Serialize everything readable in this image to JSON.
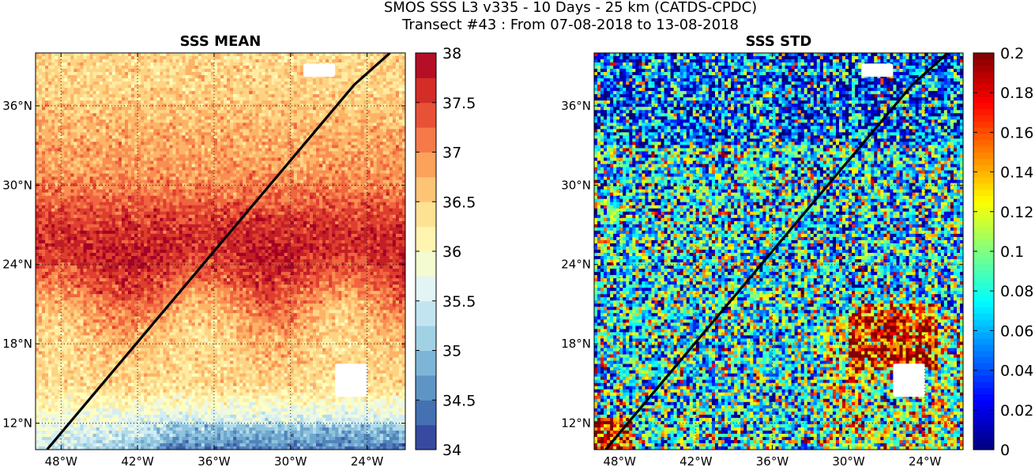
{
  "figure": {
    "title_line1": "SMOS SSS L3 v335 - 10 Days - 25 km (CATDS-CPDC)",
    "title_line2": "Transect #43 : From 07-08-2018 to 13-08-2018"
  },
  "chart_data": [
    {
      "type": "heatmap",
      "title": "SSS MEAN",
      "colormap": "RdYlBu_r (discrete, 0.25 steps)",
      "xlabel": "",
      "ylabel": "",
      "x_ticks": [
        "48°W",
        "42°W",
        "36°W",
        "30°W",
        "24°W"
      ],
      "x_tick_values": [
        -48,
        -42,
        -36,
        -30,
        -24
      ],
      "y_ticks": [
        "12°N",
        "18°N",
        "24°N",
        "30°N",
        "36°N"
      ],
      "y_tick_values": [
        12,
        18,
        24,
        30,
        36
      ],
      "xlim": [
        -50,
        -21
      ],
      "ylim": [
        10,
        40
      ],
      "grid": true,
      "colorbar": {
        "range": [
          34,
          38
        ],
        "step": 0.25,
        "tick_labels": [
          "34",
          "34.5",
          "35",
          "35.5",
          "36",
          "36.5",
          "37",
          "37.5",
          "38"
        ],
        "tick_values": [
          34,
          34.5,
          35,
          35.5,
          36,
          36.5,
          37,
          37.5,
          38
        ]
      },
      "field_summary": "Salinity ~36.5 north of 34°N, maximum ~37.5-38 between 20°N and 30°N, decreasing to ~35-35.5 south of 13°N",
      "transect": {
        "lon": [
          -49.1,
          -25.0,
          -22.2
        ],
        "lat": [
          10.0,
          37.6,
          40.0
        ]
      },
      "missing_data_patches": [
        {
          "lon": [
            -26.5,
            -24.0
          ],
          "lat": [
            14.0,
            16.5
          ]
        },
        {
          "lon": [
            -29.0,
            -26.5
          ],
          "lat": [
            38.2,
            39.2
          ]
        }
      ]
    },
    {
      "type": "heatmap",
      "title": "SSS STD",
      "colormap": "jet (continuous)",
      "xlabel": "",
      "ylabel": "",
      "x_ticks": [
        "48°W",
        "42°W",
        "36°W",
        "30°W",
        "24°W"
      ],
      "x_tick_values": [
        -48,
        -42,
        -36,
        -30,
        -24
      ],
      "y_ticks": [
        "12°N",
        "18°N",
        "24°N",
        "30°N",
        "36°N"
      ],
      "y_tick_values": [
        12,
        18,
        24,
        30,
        36
      ],
      "xlim": [
        -50,
        -21
      ],
      "ylim": [
        10,
        40
      ],
      "grid": true,
      "colorbar": {
        "range": [
          0,
          0.2
        ],
        "tick_labels": [
          "0",
          "0.02",
          "0.04",
          "0.06",
          "0.08",
          "0.1",
          "0.12",
          "0.14",
          "0.16",
          "0.18",
          "0.2"
        ],
        "tick_values": [
          0,
          0.02,
          0.04,
          0.06,
          0.08,
          0.1,
          0.12,
          0.14,
          0.16,
          0.18,
          0.2
        ]
      },
      "field_summary": "Mostly 0.03-0.12 with noisy speckle; lower values (~0.03) north of 34°N; patches at 0.2 near 12°N and 16-20°N / 27-24°W",
      "transect": {
        "lon": [
          -49.1,
          -25.0,
          -22.2
        ],
        "lat": [
          10.0,
          37.6,
          40.0
        ]
      },
      "missing_data_patches": [
        {
          "lon": [
            -26.5,
            -24.0
          ],
          "lat": [
            14.0,
            16.5
          ]
        },
        {
          "lon": [
            -29.0,
            -26.5
          ],
          "lat": [
            38.2,
            39.2
          ]
        }
      ]
    }
  ]
}
